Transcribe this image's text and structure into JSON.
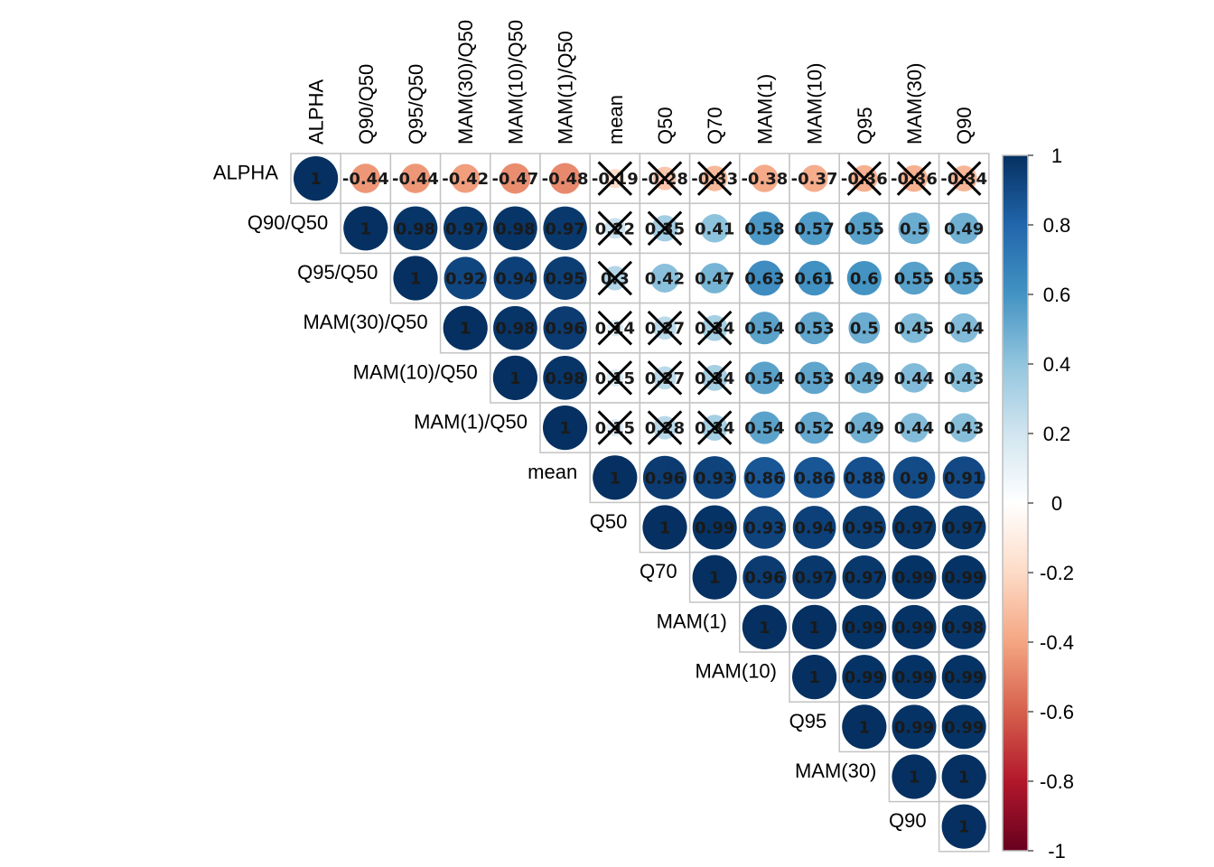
{
  "chart_data": {
    "type": "heatmap",
    "title": "",
    "variables": [
      "ALPHA",
      "Q90/Q50",
      "Q95/Q50",
      "MAM(30)/Q50",
      "MAM(10)/Q50",
      "MAM(1)/Q50",
      "mean",
      "Q50",
      "Q70",
      "MAM(1)",
      "MAM(10)",
      "Q95",
      "MAM(30)",
      "Q90"
    ],
    "matrix_upper": [
      [
        1,
        -0.44,
        -0.44,
        -0.42,
        -0.47,
        -0.48,
        -0.19,
        -0.28,
        -0.33,
        -0.38,
        -0.37,
        -0.36,
        -0.36,
        -0.34
      ],
      [
        1,
        0.98,
        0.97,
        0.98,
        0.97,
        0.22,
        0.35,
        0.41,
        0.58,
        0.57,
        0.55,
        0.5,
        0.49
      ],
      [
        1,
        0.92,
        0.94,
        0.95,
        0.3,
        0.42,
        0.47,
        0.63,
        0.61,
        0.6,
        0.55,
        0.55
      ],
      [
        1,
        0.98,
        0.96,
        0.14,
        0.27,
        0.34,
        0.54,
        0.53,
        0.5,
        0.45,
        0.44
      ],
      [
        1,
        0.98,
        0.15,
        0.27,
        0.34,
        0.54,
        0.53,
        0.49,
        0.44,
        0.43
      ],
      [
        1,
        0.15,
        0.28,
        0.34,
        0.54,
        0.52,
        0.49,
        0.44,
        0.43
      ],
      [
        1,
        0.96,
        0.93,
        0.86,
        0.86,
        0.88,
        0.9,
        0.91
      ],
      [
        1,
        0.99,
        0.93,
        0.94,
        0.95,
        0.97,
        0.97
      ],
      [
        1,
        0.96,
        0.97,
        0.97,
        0.99,
        0.99
      ],
      [
        1,
        1,
        0.99,
        0.99,
        0.98
      ],
      [
        1,
        0.99,
        0.99,
        0.99
      ],
      [
        1,
        0.99,
        0.99
      ],
      [
        1,
        1
      ],
      [
        1
      ]
    ],
    "value_labels": [
      [
        "1",
        "-0.44",
        "-0.44",
        "-0.42",
        "-0.47",
        "-0.48",
        "-0.19",
        "-0.28",
        "-0.33",
        "-0.38",
        "-0.37",
        "-0.36",
        "-0.36",
        "-0.34"
      ],
      [
        "1",
        "0.98",
        "0.97",
        "0.98",
        "0.97",
        "0.22",
        "0.35",
        "0.41",
        "0.58",
        "0.57",
        "0.55",
        "0.5",
        "0.49"
      ],
      [
        "1",
        "0.92",
        "0.94",
        "0.95",
        "0.3",
        "0.42",
        "0.47",
        "0.63",
        "0.61",
        "0.6",
        "0.55",
        "0.55"
      ],
      [
        "1",
        "0.98",
        "0.96",
        "0.14",
        "0.27",
        "0.34",
        "0.54",
        "0.53",
        "0.5",
        "0.45",
        "0.44"
      ],
      [
        "1",
        "0.98",
        "0.15",
        "0.27",
        "0.34",
        "0.54",
        "0.53",
        "0.49",
        "0.44",
        "0.43"
      ],
      [
        "1",
        "0.15",
        "0.28",
        "0.34",
        "0.54",
        "0.52",
        "0.49",
        "0.44",
        "0.43"
      ],
      [
        "1",
        "0.96",
        "0.93",
        "0.86",
        "0.86",
        "0.88",
        "0.9",
        "0.91"
      ],
      [
        "1",
        "0.99",
        "0.93",
        "0.94",
        "0.95",
        "0.97",
        "0.97"
      ],
      [
        "1",
        "0.96",
        "0.97",
        "0.97",
        "0.99",
        "0.99"
      ],
      [
        "1",
        "1",
        "0.99",
        "0.99",
        "0.98"
      ],
      [
        "1",
        "0.99",
        "0.99",
        "0.99"
      ],
      [
        "1",
        "0.99",
        "0.99"
      ],
      [
        "1",
        "1"
      ],
      [
        "1"
      ]
    ],
    "insignificant": [
      [
        0,
        6
      ],
      [
        0,
        7
      ],
      [
        0,
        8
      ],
      [
        0,
        11
      ],
      [
        0,
        12
      ],
      [
        0,
        13
      ],
      [
        1,
        6
      ],
      [
        1,
        7
      ],
      [
        2,
        6
      ],
      [
        3,
        6
      ],
      [
        3,
        7
      ],
      [
        3,
        8
      ],
      [
        4,
        6
      ],
      [
        4,
        7
      ],
      [
        4,
        8
      ],
      [
        5,
        6
      ],
      [
        5,
        7
      ],
      [
        5,
        8
      ]
    ],
    "colorbar": {
      "range": [
        -1,
        1
      ],
      "ticks": [
        "1",
        "0.8",
        "0.6",
        "0.4",
        "0.2",
        "0",
        "-0.2",
        "-0.4",
        "-0.6",
        "-0.8",
        "-1"
      ],
      "colors": [
        "#67001F",
        "#B2182B",
        "#D6604D",
        "#F4A582",
        "#FDDBC7",
        "#FFFFFF",
        "#D1E5F0",
        "#92C5DE",
        "#4393C3",
        "#2166AC",
        "#053061"
      ]
    },
    "glyph": "circle",
    "layout": "upper-triangle",
    "legend_position": "right"
  }
}
